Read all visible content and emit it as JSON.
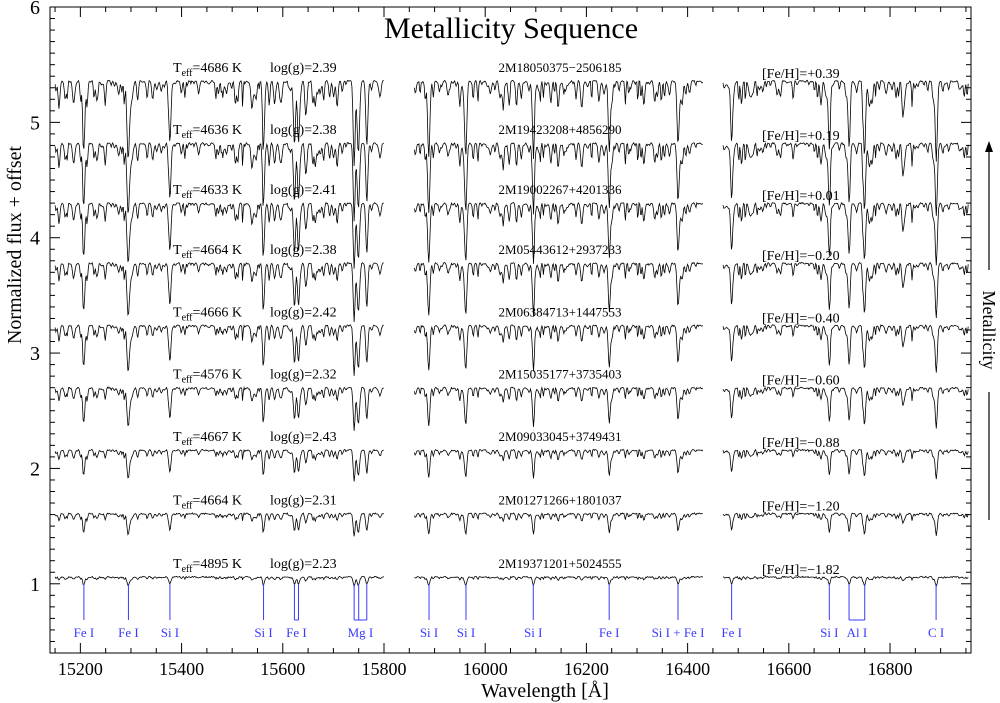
{
  "chart_data": {
    "type": "line",
    "title": "Metallicity Sequence",
    "xlabel": "Wavelength [Å]",
    "ylabel": "Normalized flux + offset",
    "xlim": [
      15140,
      16960
    ],
    "ylim": [
      0.4,
      6.0
    ],
    "xticks": [
      15200,
      15400,
      15600,
      15800,
      16000,
      16200,
      16400,
      16600,
      16800
    ],
    "yticks": [
      1,
      2,
      3,
      4,
      5,
      6
    ],
    "chips": [
      [
        15150,
        15800
      ],
      [
        15860,
        16430
      ],
      [
        16470,
        16955
      ]
    ],
    "right_annotation": "Metallicity",
    "series": [
      {
        "teff": "4686",
        "logg": "2.39",
        "star": "2M18050375−2506185",
        "feh": "+0.39",
        "offset": 5.3,
        "depth": 0.22
      },
      {
        "teff": "4636",
        "logg": "2.38",
        "star": "2M19423208+4856290",
        "feh": "+0.19",
        "offset": 4.76,
        "depth": 0.2
      },
      {
        "teff": "4633",
        "logg": "2.41",
        "star": "2M19002267+4201336",
        "feh": "+0.01",
        "offset": 4.24,
        "depth": 0.17
      },
      {
        "teff": "4664",
        "logg": "2.38",
        "star": "2M05443612+2937233",
        "feh": "−0.20",
        "offset": 3.72,
        "depth": 0.15
      },
      {
        "teff": "4666",
        "logg": "2.42",
        "star": "2M06384713+1447553",
        "feh": "−0.40",
        "offset": 3.18,
        "depth": 0.13
      },
      {
        "teff": "4576",
        "logg": "2.32",
        "star": "2M15035177+3735403",
        "feh": "−0.60",
        "offset": 2.64,
        "depth": 0.11
      },
      {
        "teff": "4667",
        "logg": "2.43",
        "star": "2M09033045+3749431",
        "feh": "−0.88",
        "offset": 2.1,
        "depth": 0.08
      },
      {
        "teff": "4664",
        "logg": "2.31",
        "star": "2M01271266+1801037",
        "feh": "−1.20",
        "offset": 1.55,
        "depth": 0.06
      },
      {
        "teff": "4895",
        "logg": "2.23",
        "star": "2M19371201+5024555",
        "feh": "−1.82",
        "offset": 1.0,
        "depth": 0.025
      }
    ],
    "line_markers": [
      {
        "label": "Fe I",
        "x": [
          15207
        ]
      },
      {
        "label": "Fe I",
        "x": [
          15295
        ]
      },
      {
        "label": "Si I",
        "x": [
          15377
        ]
      },
      {
        "label": "Si I",
        "x": [
          15562
        ]
      },
      {
        "label": "Fe I",
        "x": [
          15623,
          15631
        ]
      },
      {
        "label": "Mg I",
        "x": [
          15741,
          15750,
          15766
        ]
      },
      {
        "label": "Si I",
        "x": [
          15889
        ]
      },
      {
        "label": "Si I",
        "x": [
          15962
        ]
      },
      {
        "label": "Si I",
        "x": [
          16095
        ]
      },
      {
        "label": "Fe I",
        "x": [
          16245
        ]
      },
      {
        "label": "Si I + Fe I",
        "x": [
          16381
        ]
      },
      {
        "label": "Fe I",
        "x": [
          16487
        ]
      },
      {
        "label": "Si I",
        "x": [
          16680
        ]
      },
      {
        "label": "Al I",
        "x": [
          16719,
          16750
        ]
      },
      {
        "label": "C I",
        "x": [
          16891
        ]
      }
    ],
    "marker_color": "#3a3aff"
  }
}
